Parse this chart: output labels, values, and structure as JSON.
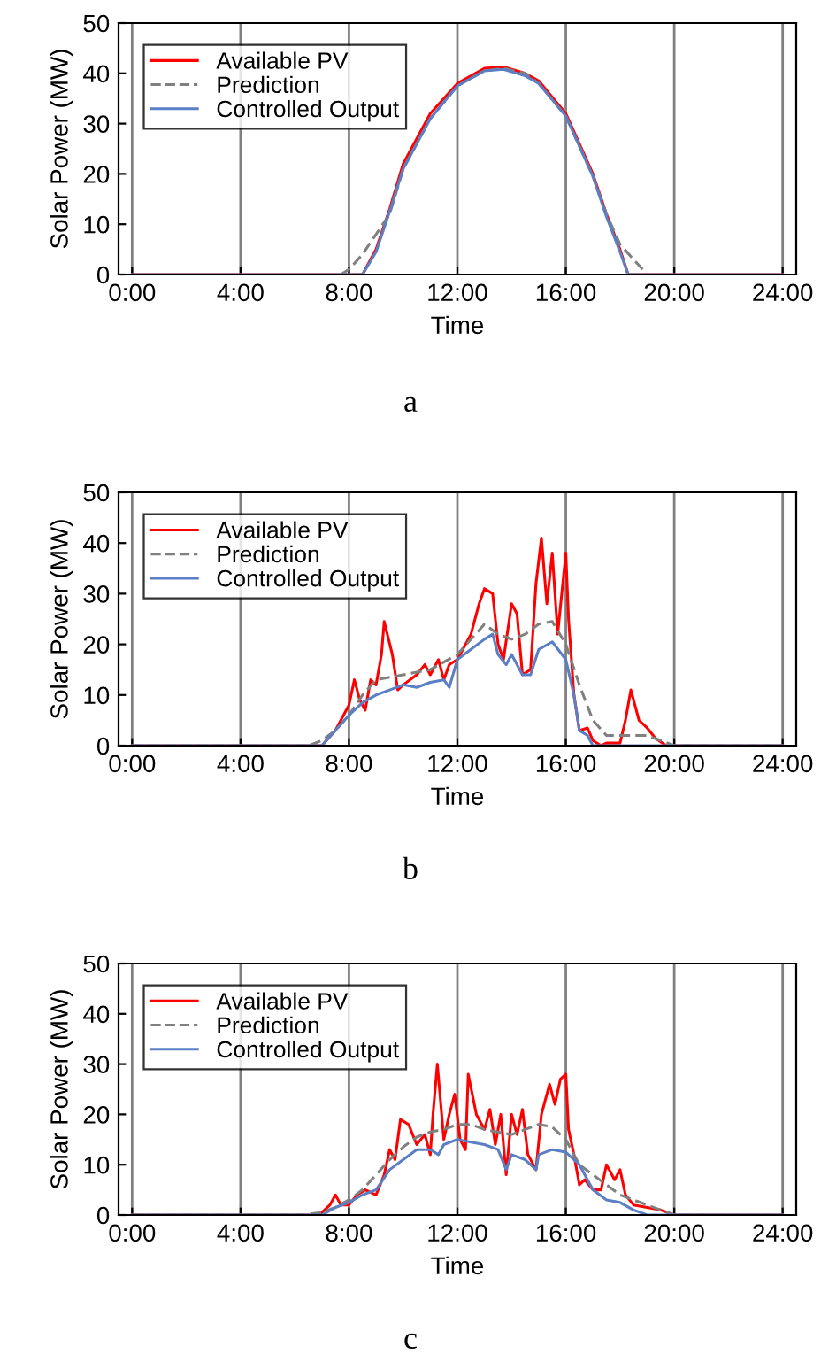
{
  "chart_data": [
    {
      "type": "line",
      "xlabel": "Time",
      "ylabel": "Solar Power (MW)",
      "annotations": [
        "a"
      ],
      "xlim": [
        -0.5,
        24.5
      ],
      "ylim": [
        0,
        50
      ],
      "xticks": [
        {
          "value": 0,
          "label": "0:00"
        },
        {
          "value": 4,
          "label": "4:00"
        },
        {
          "value": 8,
          "label": "8:00"
        },
        {
          "value": 12,
          "label": "12:00"
        },
        {
          "value": 16,
          "label": "16:00"
        },
        {
          "value": 20,
          "label": "20:00"
        },
        {
          "value": 24,
          "label": "24:00"
        }
      ],
      "yticks": [
        0,
        10,
        20,
        30,
        40,
        50
      ],
      "grid": "x",
      "legend": "top left",
      "series": [
        {
          "name": "Available PV",
          "color": "#ff0000",
          "line_style": "solid",
          "x": [
            0,
            8.5,
            9,
            9.5,
            10,
            11,
            12,
            13,
            13.7,
            14.5,
            15,
            16,
            17,
            17.5,
            18,
            18.3,
            24
          ],
          "values": [
            0,
            0,
            5,
            13,
            22,
            32,
            38,
            41,
            41.3,
            40,
            38.5,
            32,
            20,
            12,
            5,
            0,
            0
          ]
        },
        {
          "name": "Prediction",
          "color": "#808080",
          "line_style": "dashed",
          "x": [
            7.7,
            8,
            8.5,
            9,
            9.5,
            10,
            11,
            12,
            13,
            13.7,
            14.5,
            15,
            16,
            17,
            17.5,
            18,
            18.5,
            19
          ],
          "values": [
            0,
            1,
            4,
            8,
            12,
            21,
            31,
            37.5,
            40.5,
            41,
            40,
            38,
            31.5,
            19.5,
            12,
            6,
            3,
            0
          ]
        },
        {
          "name": "Controlled Output",
          "color": "#5b7fc4",
          "line_style": "solid",
          "x": [
            0,
            8.5,
            9,
            9.5,
            10,
            11,
            12,
            13,
            13.7,
            14.5,
            15,
            16,
            17,
            17.5,
            18,
            18.3,
            24
          ],
          "values": [
            0,
            0,
            4.5,
            12.5,
            21,
            31,
            37.5,
            40.5,
            40.8,
            39.5,
            38,
            31.5,
            19.5,
            11.5,
            4.5,
            0,
            0
          ]
        }
      ]
    },
    {
      "type": "line",
      "xlabel": "Time",
      "ylabel": "Solar Power (MW)",
      "annotations": [
        "b"
      ],
      "xlim": [
        -0.5,
        24.5
      ],
      "ylim": [
        0,
        50
      ],
      "xticks": [
        {
          "value": 0,
          "label": "0:00"
        },
        {
          "value": 4,
          "label": "4:00"
        },
        {
          "value": 8,
          "label": "8:00"
        },
        {
          "value": 12,
          "label": "12:00"
        },
        {
          "value": 16,
          "label": "16:00"
        },
        {
          "value": 20,
          "label": "20:00"
        },
        {
          "value": 24,
          "label": "24:00"
        }
      ],
      "yticks": [
        0,
        10,
        20,
        30,
        40,
        50
      ],
      "grid": "x",
      "legend": "top left",
      "series": [
        {
          "name": "Available PV",
          "color": "#ff0000",
          "line_style": "solid",
          "x": [
            0,
            7,
            7.5,
            8,
            8.2,
            8.4,
            8.6,
            8.8,
            9.0,
            9.2,
            9.3,
            9.6,
            9.8,
            10,
            10.5,
            10.8,
            11,
            11.3,
            11.5,
            11.7,
            12,
            12.5,
            12.8,
            13,
            13.3,
            13.5,
            13.7,
            14.0,
            14.2,
            14.4,
            14.7,
            14.9,
            15.1,
            15.3,
            15.5,
            15.7,
            16.0,
            16.1,
            16.3,
            16.5,
            16.8,
            17.0,
            17.3,
            17.5,
            18.0,
            18.2,
            18.4,
            18.7,
            19,
            19.3,
            19.7,
            24
          ],
          "values": [
            0,
            0,
            3,
            8,
            13,
            9,
            7,
            13,
            12,
            18,
            24.5,
            18,
            11,
            12,
            14,
            16,
            14,
            17,
            13,
            16,
            17,
            22,
            28,
            31,
            30,
            20,
            17,
            28,
            26,
            14,
            15,
            32,
            41,
            28,
            38,
            22,
            38,
            25,
            10,
            3,
            3.5,
            1,
            0,
            0.5,
            0.5,
            5,
            11,
            5,
            3.5,
            1.5,
            0,
            0
          ]
        },
        {
          "name": "Prediction",
          "color": "#808080",
          "line_style": "dashed",
          "x": [
            0,
            6.5,
            7,
            7.5,
            8,
            8.5,
            9,
            10,
            11,
            12,
            12.5,
            13,
            13.5,
            14,
            14.5,
            15,
            15.5,
            16,
            16.5,
            17,
            17.5,
            18,
            19,
            19.5,
            20,
            24
          ],
          "values": [
            0,
            0,
            1,
            3,
            6,
            10,
            13,
            14,
            15,
            18,
            21,
            24,
            22,
            21,
            22,
            24,
            24.5,
            20,
            12,
            5,
            2,
            2,
            2,
            1,
            0,
            0
          ]
        },
        {
          "name": "Controlled Output",
          "color": "#5b7fc4",
          "line_style": "solid",
          "x": [
            0,
            7,
            7.5,
            8,
            8.5,
            9,
            9.5,
            10,
            10.5,
            11,
            11.5,
            11.7,
            12,
            12.5,
            13,
            13.3,
            13.5,
            13.8,
            14,
            14.4,
            14.7,
            15,
            15.5,
            16,
            16.3,
            16.5,
            16.8,
            17.0,
            24
          ],
          "values": [
            0,
            0,
            3,
            6,
            8.5,
            10,
            11,
            12,
            11.5,
            12.5,
            13,
            11.5,
            17,
            19,
            21,
            22,
            18,
            16,
            18,
            14,
            14,
            19,
            20.5,
            17,
            10,
            3,
            2,
            0,
            0
          ]
        }
      ]
    },
    {
      "type": "line",
      "xlabel": "Time",
      "ylabel": "Solar Power (MW)",
      "annotations": [
        "c"
      ],
      "xlim": [
        -0.5,
        24.5
      ],
      "ylim": [
        0,
        50
      ],
      "xticks": [
        {
          "value": 0,
          "label": "0:00"
        },
        {
          "value": 4,
          "label": "4:00"
        },
        {
          "value": 8,
          "label": "8:00"
        },
        {
          "value": 12,
          "label": "12:00"
        },
        {
          "value": 16,
          "label": "16:00"
        },
        {
          "value": 20,
          "label": "20:00"
        },
        {
          "value": 24,
          "label": "24:00"
        }
      ],
      "yticks": [
        0,
        10,
        20,
        30,
        40,
        50
      ],
      "grid": "x",
      "legend": "top left",
      "series": [
        {
          "name": "Available PV",
          "color": "#ff0000",
          "line_style": "solid",
          "x": [
            0,
            6.8,
            7.0,
            7.3,
            7.5,
            7.7,
            8,
            8.3,
            8.6,
            9,
            9.3,
            9.5,
            9.7,
            9.9,
            10.2,
            10.5,
            10.8,
            11,
            11.1,
            11.26,
            11.5,
            11.7,
            11.9,
            12.1,
            12.3,
            12.4,
            12.7,
            13,
            13.2,
            13.4,
            13.6,
            13.8,
            14.0,
            14.2,
            14.4,
            14.6,
            14.9,
            15.1,
            15.4,
            15.6,
            15.8,
            16.0,
            16.1,
            16.3,
            16.5,
            16.7,
            17,
            17.3,
            17.5,
            17.8,
            18.0,
            18.2,
            18.5,
            19,
            19.5,
            20,
            24
          ],
          "values": [
            0,
            0,
            0.5,
            2,
            4,
            2,
            2,
            4,
            5,
            4,
            8,
            13,
            11,
            19,
            18,
            14,
            16,
            12,
            20,
            30,
            15,
            20,
            24,
            15,
            13,
            28,
            20,
            17,
            21,
            14,
            20,
            8,
            20,
            16,
            21,
            12,
            9,
            20,
            26,
            22,
            27,
            28,
            17,
            12,
            6,
            7,
            5,
            5,
            10,
            7,
            9,
            4,
            2,
            1.5,
            1,
            0,
            0
          ]
        },
        {
          "name": "Prediction",
          "color": "#808080",
          "line_style": "dashed",
          "x": [
            0,
            6.3,
            7,
            7.5,
            8,
            8.5,
            9,
            9.5,
            10,
            10.5,
            11,
            11.5,
            12,
            12.5,
            13,
            13.5,
            14,
            14.5,
            15,
            15.5,
            16,
            16.5,
            17,
            17.5,
            18,
            18.5,
            19,
            19.5,
            20,
            24
          ],
          "values": [
            0,
            0,
            0.5,
            1.5,
            3,
            5,
            8,
            11,
            13.5,
            15.5,
            16.5,
            17,
            18,
            18,
            17,
            16.5,
            16,
            17,
            18,
            17.5,
            15,
            10,
            8,
            6,
            4,
            3,
            2,
            1,
            0,
            0
          ]
        },
        {
          "name": "Controlled Output",
          "color": "#5b7fc4",
          "line_style": "solid",
          "x": [
            0,
            7,
            7.5,
            8,
            8.5,
            9,
            9.5,
            10,
            10.5,
            11,
            11.3,
            11.5,
            12,
            12.5,
            13,
            13.5,
            13.8,
            14,
            14.5,
            14.9,
            15,
            15.5,
            16,
            16.5,
            17,
            17.5,
            18,
            18.5,
            19,
            24
          ],
          "values": [
            0,
            0,
            1.5,
            2.5,
            4,
            5,
            9,
            11,
            13,
            13,
            12,
            14,
            15,
            14.5,
            14,
            13,
            9,
            12,
            11,
            9,
            12,
            13,
            12.5,
            10,
            5,
            3,
            2.5,
            1,
            0,
            0
          ]
        }
      ]
    }
  ]
}
